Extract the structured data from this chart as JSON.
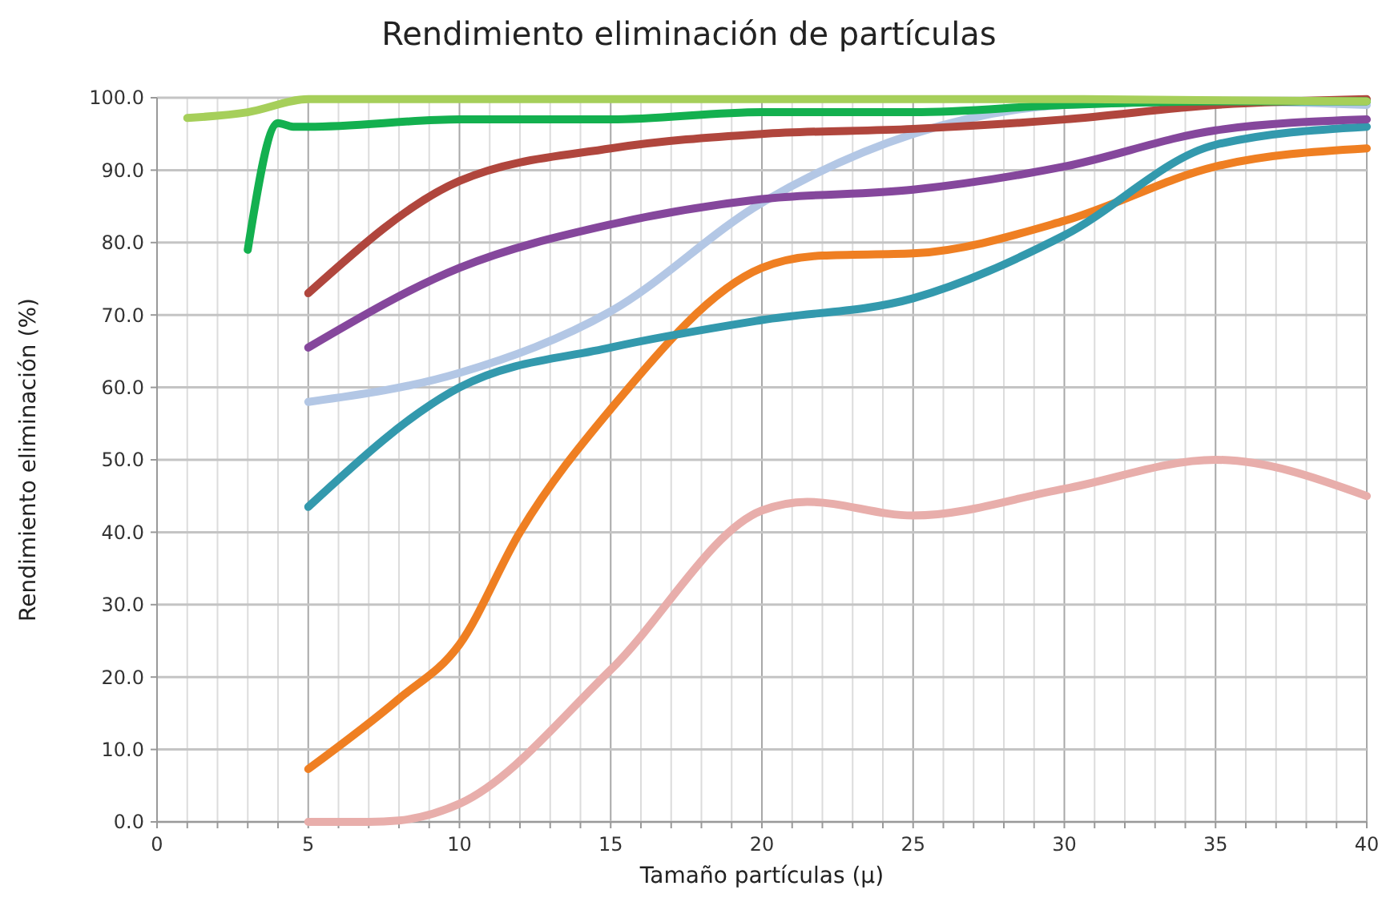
{
  "chart_data": {
    "type": "line",
    "title": "Rendimiento eliminación de partículas",
    "xlabel": "Tamaño partículas (μ)",
    "ylabel": "Rendimiento eliminación (%)",
    "xlim": [
      0,
      40
    ],
    "ylim": [
      0,
      100
    ],
    "xticks": [
      0,
      {
        "value": 1,
        "label": null
      },
      {
        "value": 2,
        "label": null
      },
      {
        "value": 3,
        "label": null
      },
      {
        "value": 4,
        "label": null
      },
      5,
      {
        "value": 6,
        "label": null
      },
      {
        "value": 7,
        "label": null
      },
      {
        "value": 8,
        "label": null
      },
      {
        "value": 9,
        "label": null
      },
      10,
      {
        "value": 11,
        "label": null
      },
      {
        "value": 12,
        "label": null
      },
      {
        "value": 13,
        "label": null
      },
      {
        "value": 14,
        "label": null
      },
      15,
      {
        "value": 16,
        "label": null
      },
      {
        "value": 17,
        "label": null
      },
      {
        "value": 18,
        "label": null
      },
      {
        "value": 19,
        "label": null
      },
      20,
      {
        "value": 21,
        "label": null
      },
      {
        "value": 22,
        "label": null
      },
      {
        "value": 23,
        "label": null
      },
      {
        "value": 24,
        "label": null
      },
      25,
      {
        "value": 26,
        "label": null
      },
      {
        "value": 27,
        "label": null
      },
      {
        "value": 28,
        "label": null
      },
      {
        "value": 29,
        "label": null
      },
      30,
      {
        "value": 31,
        "label": null
      },
      {
        "value": 32,
        "label": null
      },
      {
        "value": 33,
        "label": null
      },
      {
        "value": 34,
        "label": null
      },
      35,
      {
        "value": 36,
        "label": null
      },
      {
        "value": 37,
        "label": null
      },
      {
        "value": 38,
        "label": null
      },
      {
        "value": 39,
        "label": null
      },
      40
    ],
    "yticks": [
      {
        "value": 0,
        "label": "0.0"
      },
      {
        "value": 10,
        "label": "10.0"
      },
      {
        "value": 20,
        "label": "20.0"
      },
      {
        "value": 30,
        "label": "30.0"
      },
      {
        "value": 40,
        "label": "40.0"
      },
      {
        "value": 50,
        "label": "50.0"
      },
      {
        "value": 60,
        "label": "60.0"
      },
      {
        "value": 70,
        "label": "70.0"
      },
      {
        "value": 80,
        "label": "80.0"
      },
      {
        "value": 90,
        "label": "90.0"
      },
      {
        "value": 100,
        "label": "100.0"
      }
    ],
    "grid": true,
    "marker": "none",
    "line_style": "solid",
    "series": [
      {
        "color": "#e8aeab",
        "x": [
          5,
          7,
          8,
          10,
          15,
          20,
          21.5,
          25,
          30,
          35,
          40
        ],
        "values": [
          0,
          0,
          0.2,
          2.5,
          21,
          43,
          44.2,
          42.3,
          46,
          50,
          45
        ]
      },
      {
        "color": "#ef7f22",
        "x": [
          5,
          8,
          10,
          12,
          15,
          20,
          22,
          25,
          30,
          35,
          40
        ],
        "values": [
          7.3,
          17,
          24.5,
          40,
          57,
          76.5,
          78.2,
          78.5,
          83,
          90.5,
          93
        ]
      },
      {
        "color": "#3399ad",
        "x": [
          5,
          10,
          15,
          20,
          25,
          30,
          35,
          40
        ],
        "values": [
          43.5,
          60,
          65.5,
          69.3,
          72.3,
          81,
          93.5,
          96
        ]
      },
      {
        "color": "#b3c7e5",
        "x": [
          5,
          10,
          15,
          20,
          25,
          30,
          35,
          40
        ],
        "values": [
          58,
          62,
          70.5,
          85.5,
          95,
          99,
          99.5,
          99
        ]
      },
      {
        "color": "#85479c",
        "x": [
          5,
          10,
          15,
          20,
          25,
          30,
          35,
          40
        ],
        "values": [
          65.5,
          76.5,
          82.5,
          86,
          87.3,
          90.5,
          95.5,
          97
        ]
      },
      {
        "color": "#b0463d",
        "x": [
          5,
          10,
          15,
          20,
          25,
          30,
          35,
          40
        ],
        "values": [
          73,
          88.5,
          93,
          95,
          95.7,
          97,
          99,
          99.8
        ]
      },
      {
        "color": "#13b04f",
        "x": [
          3,
          4,
          4.5,
          5,
          10,
          15,
          20,
          25,
          30,
          35,
          40
        ],
        "values": [
          79,
          96.5,
          96,
          96,
          97,
          97,
          98,
          98,
          99,
          99.5,
          99.5
        ]
      },
      {
        "color": "#a6cf5a",
        "x": [
          1,
          3,
          5,
          10,
          20,
          30,
          40
        ],
        "values": [
          97.2,
          98,
          99.8,
          99.8,
          99.8,
          99.8,
          99.5
        ]
      }
    ]
  }
}
